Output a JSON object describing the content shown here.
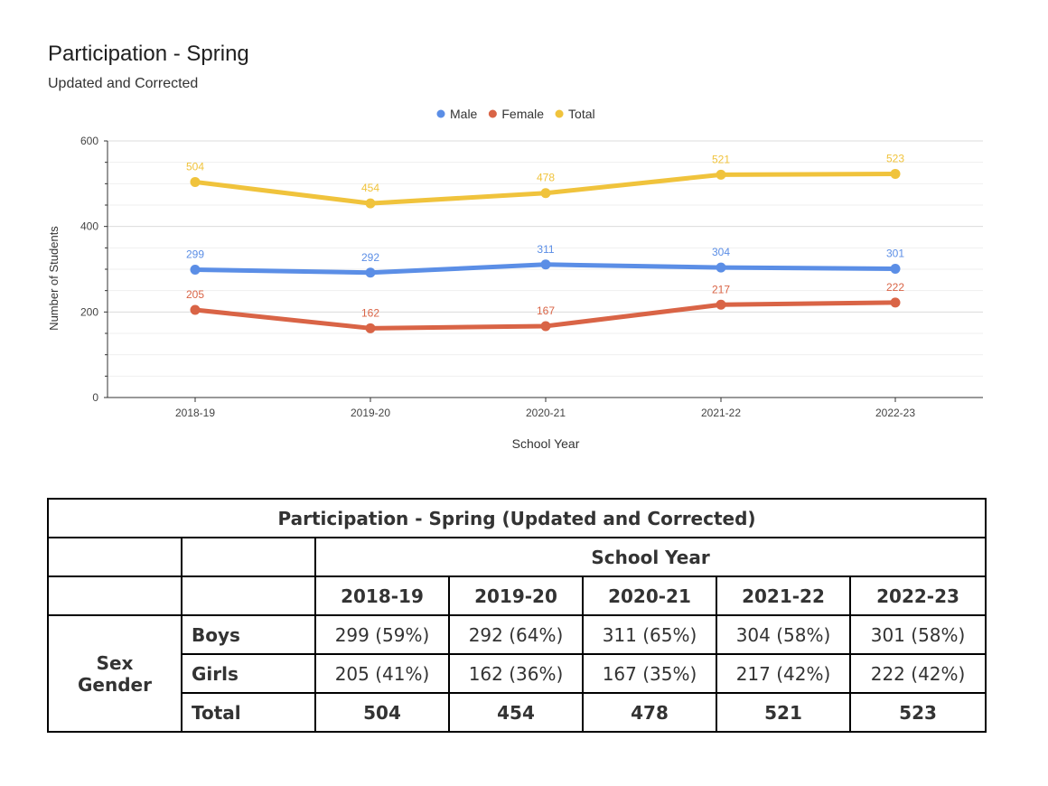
{
  "chart": {
    "title": "Participation - Spring",
    "subtitle": "Updated and Corrected"
  },
  "chart_data": {
    "type": "line",
    "x": [
      "2018-19",
      "2019-20",
      "2020-21",
      "2021-22",
      "2022-23"
    ],
    "series": [
      {
        "name": "Male",
        "color": "#5b8ee6",
        "values": [
          299,
          292,
          311,
          304,
          301
        ]
      },
      {
        "name": "Female",
        "color": "#d96446",
        "values": [
          205,
          162,
          167,
          217,
          222
        ]
      },
      {
        "name": "Total",
        "color": "#f0c33c",
        "values": [
          504,
          454,
          478,
          521,
          523
        ]
      }
    ],
    "xlabel": "School Year",
    "ylabel": "Number of Students",
    "ylim": [
      0,
      600
    ],
    "yticks": [
      0,
      200,
      400,
      600
    ],
    "grid": true,
    "legend_position": "top-center"
  },
  "table": {
    "caption": "Participation - Spring (Updated and Corrected)",
    "header_group": "School Year",
    "years": [
      "2018-19",
      "2019-20",
      "2020-21",
      "2021-22",
      "2022-23"
    ],
    "group_label_line1": "Sex",
    "group_label_line2": "Gender",
    "rows": [
      {
        "label": "Boys",
        "cells": [
          "299 (59%)",
          "292 (64%)",
          "311 (65%)",
          "304 (58%)",
          "301 (58%)"
        ]
      },
      {
        "label": "Girls",
        "cells": [
          "205 (41%)",
          "162 (36%)",
          "167 (35%)",
          "217 (42%)",
          "222 (42%)"
        ]
      },
      {
        "label": "Total",
        "cells": [
          "504",
          "454",
          "478",
          "521",
          "523"
        ]
      }
    ]
  }
}
